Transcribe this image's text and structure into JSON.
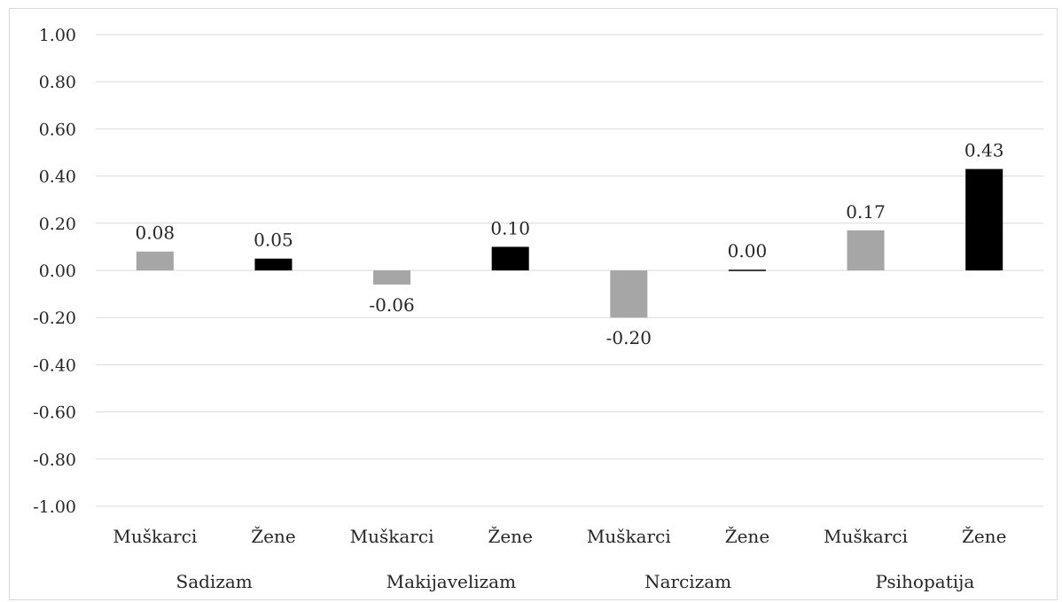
{
  "chart_data": {
    "type": "bar",
    "groups": [
      {
        "label": "Sadizam",
        "bars": [
          {
            "label": "Muškarci",
            "value": 0.08,
            "text": "0.08",
            "color": "#a6a6a6"
          },
          {
            "label": "Žene",
            "value": 0.05,
            "text": "0.05",
            "color": "#000000"
          }
        ]
      },
      {
        "label": "Makijavelizam",
        "bars": [
          {
            "label": "Muškarci",
            "value": -0.06,
            "text": "-0.06",
            "color": "#a6a6a6"
          },
          {
            "label": "Žene",
            "value": 0.1,
            "text": "0.10",
            "color": "#000000"
          }
        ]
      },
      {
        "label": "Narcizam",
        "bars": [
          {
            "label": "Muškarci",
            "value": -0.2,
            "text": "-0.20",
            "color": "#a6a6a6"
          },
          {
            "label": "Žene",
            "value": 0.003,
            "text": "0.00",
            "color": "#000000"
          }
        ]
      },
      {
        "label": "Psihopatija",
        "bars": [
          {
            "label": "Muškarci",
            "value": 0.17,
            "text": "0.17",
            "color": "#a6a6a6"
          },
          {
            "label": "Žene",
            "value": 0.43,
            "text": "0.43",
            "color": "#000000"
          }
        ]
      }
    ],
    "yticks": [
      "1.00",
      "0.80",
      "0.60",
      "0.40",
      "0.20",
      "0.00",
      "-0.20",
      "-0.40",
      "-0.60",
      "-0.80",
      "-1.00"
    ],
    "ylim": [
      -1.0,
      1.0
    ],
    "grid": true,
    "gridline_color": "#d9d9d9"
  }
}
